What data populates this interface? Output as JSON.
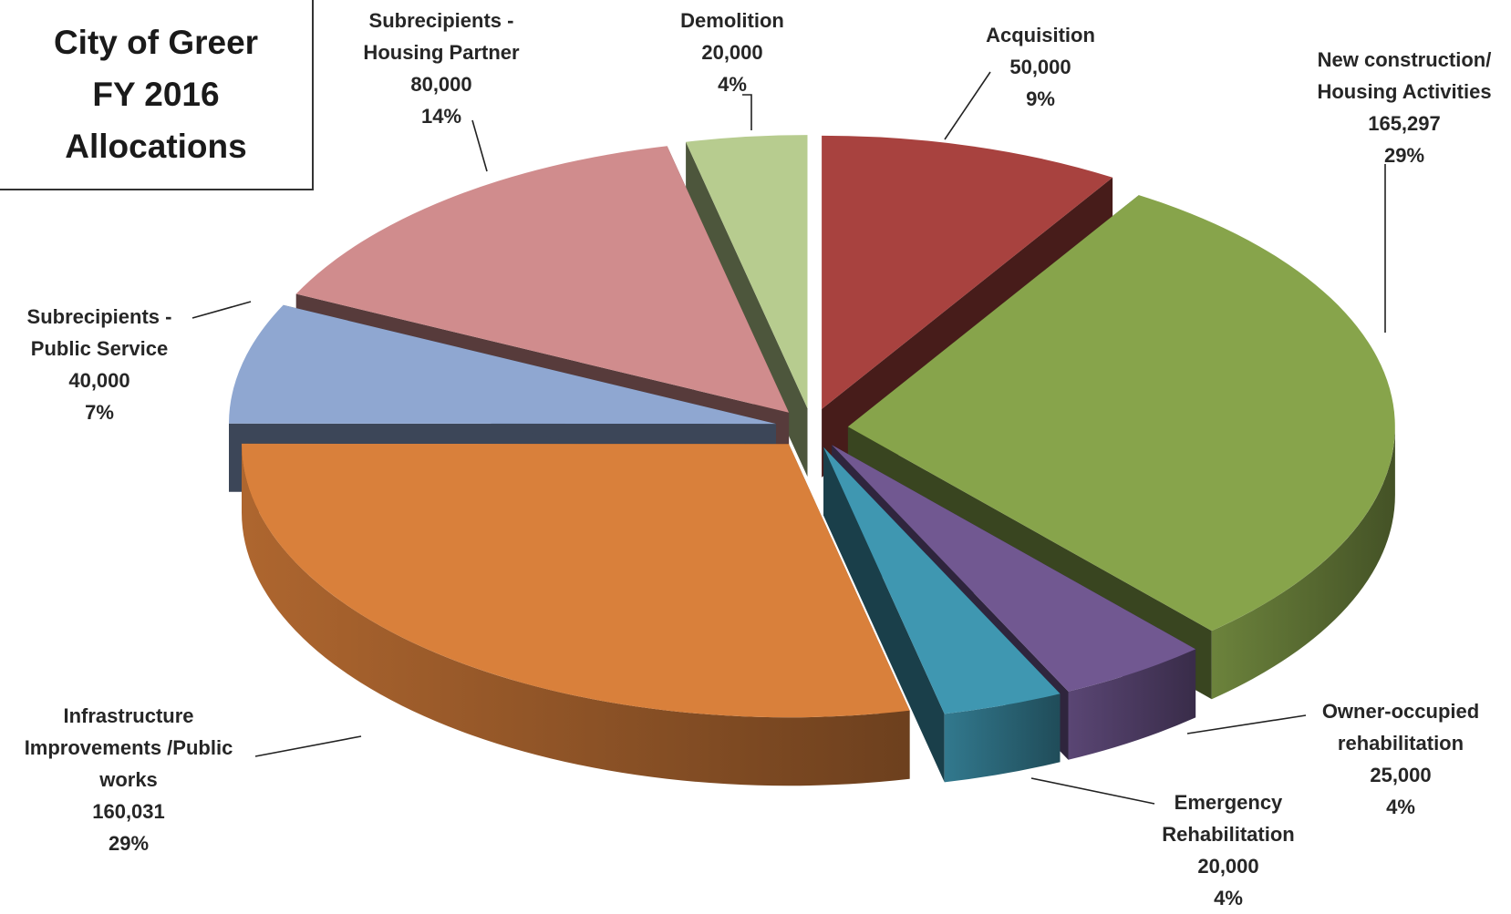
{
  "chart_data": {
    "type": "pie",
    "title": "City of Greer\nFY 2016\nAllocations",
    "categories": [
      "Acquisition",
      "New construction/\nHousing Activities",
      "Owner-occupied\nrehabilitation",
      "Emergency\nRehabilitation",
      "Infrastructure\nImprovements /Public\nworks",
      "Subrecipients -\nPublic Service",
      "Subrecipients -\nHousing Partner",
      "Demolition"
    ],
    "values": [
      50000,
      165297,
      25000,
      20000,
      160031,
      40000,
      80000,
      20000
    ],
    "value_labels": [
      "50,000",
      "165,297",
      "25,000",
      "20,000",
      "160,031",
      "40,000",
      "80,000",
      "20,000"
    ],
    "percents": [
      9,
      29,
      4,
      4,
      29,
      7,
      14,
      4
    ],
    "percent_labels": [
      "9%",
      "29%",
      "4%",
      "4%",
      "29%",
      "7%",
      "14%",
      "4%"
    ],
    "colors": [
      "#a8423f",
      "#87a44b",
      "#715891",
      "#3f97b1",
      "#d9803b",
      "#8fa7d1",
      "#d08c8d",
      "#b7cc8f"
    ]
  }
}
